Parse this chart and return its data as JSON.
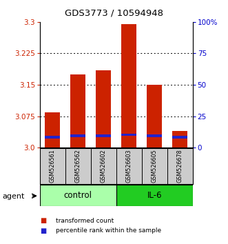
{
  "title": "GDS3773 / 10594948",
  "samples": [
    "GSM526561",
    "GSM526562",
    "GSM526602",
    "GSM526603",
    "GSM526605",
    "GSM526678"
  ],
  "red_values": [
    3.085,
    3.175,
    3.185,
    3.295,
    3.15,
    3.04
  ],
  "blue_values": [
    3.025,
    3.028,
    3.028,
    3.031,
    3.028,
    3.025
  ],
  "y_min": 3.0,
  "y_max": 3.3,
  "y_ticks_left": [
    3.0,
    3.075,
    3.15,
    3.225,
    3.3
  ],
  "y_ticks_right": [
    0,
    25,
    50,
    75,
    100
  ],
  "right_tick_labels": [
    "0",
    "25",
    "50",
    "75",
    "100%"
  ],
  "groups": [
    {
      "label": "control",
      "samples": [
        0,
        1,
        2
      ],
      "color": "#aaffaa"
    },
    {
      "label": "IL-6",
      "samples": [
        3,
        4,
        5
      ],
      "color": "#22cc22"
    }
  ],
  "bar_color_red": "#cc2200",
  "bar_color_blue": "#2222cc",
  "bar_width": 0.6,
  "label_color_left": "#cc2200",
  "label_color_right": "#0000cc",
  "agent_label": "agent",
  "legend_red": "transformed count",
  "legend_blue": "percentile rank within the sample",
  "sample_bg_color": "#cccccc"
}
